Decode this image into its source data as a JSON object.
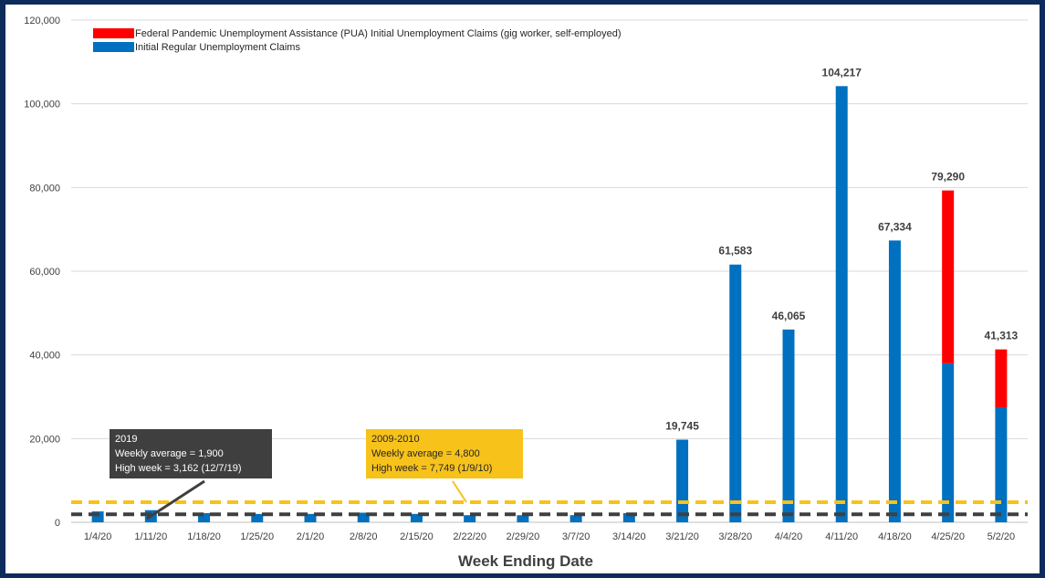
{
  "chart_data": {
    "type": "bar",
    "stacked": true,
    "xlabel": "Week Ending Date",
    "ylabel": "",
    "ylim": [
      0,
      120000
    ],
    "yticks": [
      0,
      20000,
      40000,
      60000,
      80000,
      100000,
      120000
    ],
    "ytick_labels": [
      "0",
      "20,000",
      "40,000",
      "60,000",
      "80,000",
      "100,000",
      "120,000"
    ],
    "grid": true,
    "legend_position": "top-left",
    "categories": [
      "1/4/20",
      "1/11/20",
      "1/18/20",
      "1/25/20",
      "2/1/20",
      "2/8/20",
      "2/15/20",
      "2/22/20",
      "2/29/20",
      "3/7/20",
      "3/14/20",
      "3/21/20",
      "3/28/20",
      "4/4/20",
      "4/11/20",
      "4/18/20",
      "4/25/20",
      "5/2/20"
    ],
    "series": [
      {
        "name": "Initial Regular Unemployment Claims",
        "color": "#0070c0",
        "values": [
          2600,
          2900,
          2200,
          2000,
          2000,
          2300,
          2000,
          1700,
          1700,
          1700,
          2200,
          19745,
          61583,
          46065,
          104217,
          67334,
          38000,
          27500
        ]
      },
      {
        "name": "Federal Pandemic Unemployment Assistance (PUA) Initial Unemployment Claims (gig worker, self-employed)",
        "color": "#ff0000",
        "values": [
          0,
          0,
          0,
          0,
          0,
          0,
          0,
          0,
          0,
          0,
          0,
          0,
          0,
          0,
          0,
          0,
          41290,
          13813
        ]
      }
    ],
    "totals": [
      2600,
      2900,
      2200,
      2000,
      2000,
      2300,
      2000,
      1700,
      1700,
      1700,
      2200,
      19745,
      61583,
      46065,
      104217,
      67334,
      79290,
      41313
    ],
    "data_labels": {
      "11": "19,745",
      "12": "61,583",
      "13": "46,065",
      "14": "104,217",
      "15": "67,334",
      "16": "79,290",
      "17": "41,313"
    },
    "reference_lines": [
      {
        "name": "2019 weekly average",
        "value": 1900,
        "color": "#3f3f3f",
        "style": "dashed"
      },
      {
        "name": "2009-2010 weekly average",
        "value": 4800,
        "color": "#f7c21a",
        "style": "dashed"
      }
    ],
    "annotations": [
      {
        "lines": [
          "2019",
          "Weekly average = 1,900",
          "High week = 3,162 (12/7/19)"
        ],
        "color": "#3f3f3f",
        "text_color": "#ffffff"
      },
      {
        "lines": [
          "2009-2010",
          "Weekly average = 4,800",
          "High week = 7,749 (1/9/10)"
        ],
        "color": "#f7c21a",
        "text_color": "#262626"
      }
    ]
  },
  "colors": {
    "frame_background": "#0d2b5b",
    "plot_background": "#ffffff",
    "gridline": "#d9d9d9"
  }
}
